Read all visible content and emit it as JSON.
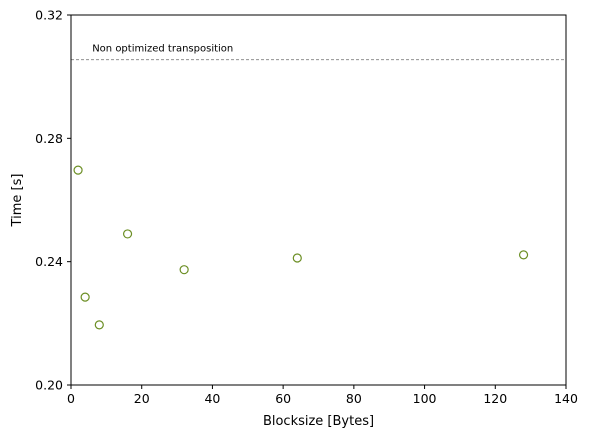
{
  "chart_data": {
    "type": "scatter",
    "xlabel": "Blocksize [Bytes]",
    "ylabel": "Time [s]",
    "xlim": [
      0,
      140
    ],
    "ylim": [
      0.2,
      0.32
    ],
    "xticks": [
      "0",
      "20",
      "40",
      "60",
      "80",
      "100",
      "120",
      "140"
    ],
    "xtick_values": [
      0,
      20,
      40,
      60,
      80,
      100,
      120,
      140
    ],
    "yticks": [
      "0.20",
      "0.24",
      "0.28",
      "0.32"
    ],
    "ytick_values": [
      0.2,
      0.24,
      0.28,
      0.32
    ],
    "grid": false,
    "marker_color": "#6b8e23",
    "points": [
      {
        "x": 2,
        "y": 0.2697
      },
      {
        "x": 4,
        "y": 0.2285
      },
      {
        "x": 8,
        "y": 0.2195
      },
      {
        "x": 16,
        "y": 0.249
      },
      {
        "x": 32,
        "y": 0.2374
      },
      {
        "x": 64,
        "y": 0.2412
      },
      {
        "x": 128,
        "y": 0.2422
      }
    ],
    "reference_line": {
      "y": 0.3055,
      "label": "Non optimized transposition",
      "color": "#808080"
    }
  }
}
